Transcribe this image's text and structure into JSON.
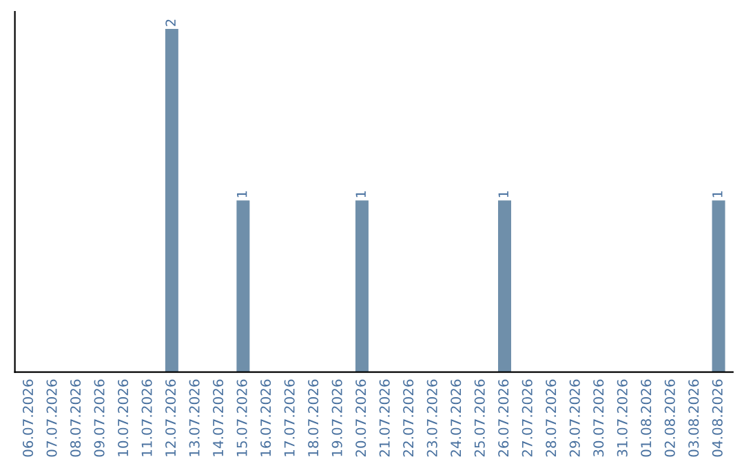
{
  "chart_data": {
    "type": "bar",
    "categories": [
      "06.07.2026",
      "07.07.2026",
      "08.07.2026",
      "09.07.2026",
      "10.07.2026",
      "11.07.2026",
      "12.07.2026",
      "13.07.2026",
      "14.07.2026",
      "15.07.2026",
      "16.07.2026",
      "17.07.2026",
      "18.07.2026",
      "19.07.2026",
      "20.07.2026",
      "21.07.2026",
      "22.07.2026",
      "23.07.2026",
      "24.07.2026",
      "25.07.2026",
      "26.07.2026",
      "27.07.2026",
      "28.07.2026",
      "29.07.2026",
      "30.07.2026",
      "31.07.2026",
      "01.08.2026",
      "02.08.2026",
      "03.08.2026",
      "04.08.2026"
    ],
    "values": [
      0,
      0,
      0,
      0,
      0,
      0,
      2,
      0,
      0,
      1,
      0,
      0,
      0,
      0,
      1,
      0,
      0,
      0,
      0,
      0,
      1,
      0,
      0,
      0,
      0,
      0,
      0,
      0,
      0,
      1
    ],
    "value_labels": [
      null,
      null,
      null,
      null,
      null,
      null,
      "2",
      null,
      null,
      "1",
      null,
      null,
      null,
      null,
      "1",
      null,
      null,
      null,
      null,
      null,
      "1",
      null,
      null,
      null,
      null,
      null,
      null,
      null,
      null,
      "1"
    ],
    "color": "#6f8faa",
    "tick_labels": "x",
    "grid": false,
    "legend": false
  }
}
